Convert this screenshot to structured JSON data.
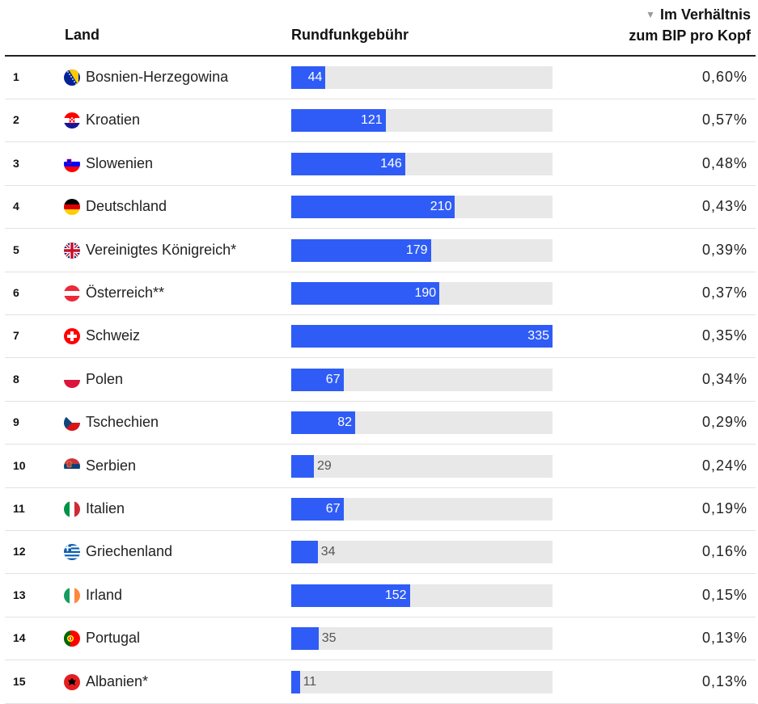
{
  "header": {
    "land": "Land",
    "fee": "Rundfunkgebühr",
    "ratio_line1": "Im Verhältnis",
    "ratio_line2": "zum BIP pro Kopf",
    "sort_icon": "▼"
  },
  "colors": {
    "bar": "#2f5cf6",
    "track": "#e8e8e8"
  },
  "chart_data": {
    "type": "bar",
    "title": "",
    "columns": [
      "Land",
      "Rundfunkgebühr",
      "Im Verhältnis zum BIP pro Kopf"
    ],
    "xlim": [
      0,
      335
    ],
    "rows": [
      {
        "rank": "1",
        "country": "Bosnien-Herzegowina",
        "flag": "ba",
        "fee": 44,
        "ratio": "0,60%"
      },
      {
        "rank": "2",
        "country": "Kroatien",
        "flag": "hr",
        "fee": 121,
        "ratio": "0,57%"
      },
      {
        "rank": "3",
        "country": "Slowenien",
        "flag": "si",
        "fee": 146,
        "ratio": "0,48%"
      },
      {
        "rank": "4",
        "country": "Deutschland",
        "flag": "de",
        "fee": 210,
        "ratio": "0,43%"
      },
      {
        "rank": "5",
        "country": "Vereinigtes Königreich*",
        "flag": "gb",
        "fee": 179,
        "ratio": "0,39%"
      },
      {
        "rank": "6",
        "country": "Österreich**",
        "flag": "at",
        "fee": 190,
        "ratio": "0,37%"
      },
      {
        "rank": "7",
        "country": "Schweiz",
        "flag": "ch",
        "fee": 335,
        "ratio": "0,35%"
      },
      {
        "rank": "8",
        "country": "Polen",
        "flag": "pl",
        "fee": 67,
        "ratio": "0,34%"
      },
      {
        "rank": "9",
        "country": "Tschechien",
        "flag": "cz",
        "fee": 82,
        "ratio": "0,29%"
      },
      {
        "rank": "10",
        "country": "Serbien",
        "flag": "rs",
        "fee": 29,
        "ratio": "0,24%"
      },
      {
        "rank": "11",
        "country": "Italien",
        "flag": "it",
        "fee": 67,
        "ratio": "0,19%"
      },
      {
        "rank": "12",
        "country": "Griechenland",
        "flag": "gr",
        "fee": 34,
        "ratio": "0,16%"
      },
      {
        "rank": "13",
        "country": "Irland",
        "flag": "ie",
        "fee": 152,
        "ratio": "0,15%"
      },
      {
        "rank": "14",
        "country": "Portugal",
        "flag": "pt",
        "fee": 35,
        "ratio": "0,13%"
      },
      {
        "rank": "15",
        "country": "Albanien*",
        "flag": "al",
        "fee": 11,
        "ratio": "0,13%"
      }
    ]
  }
}
